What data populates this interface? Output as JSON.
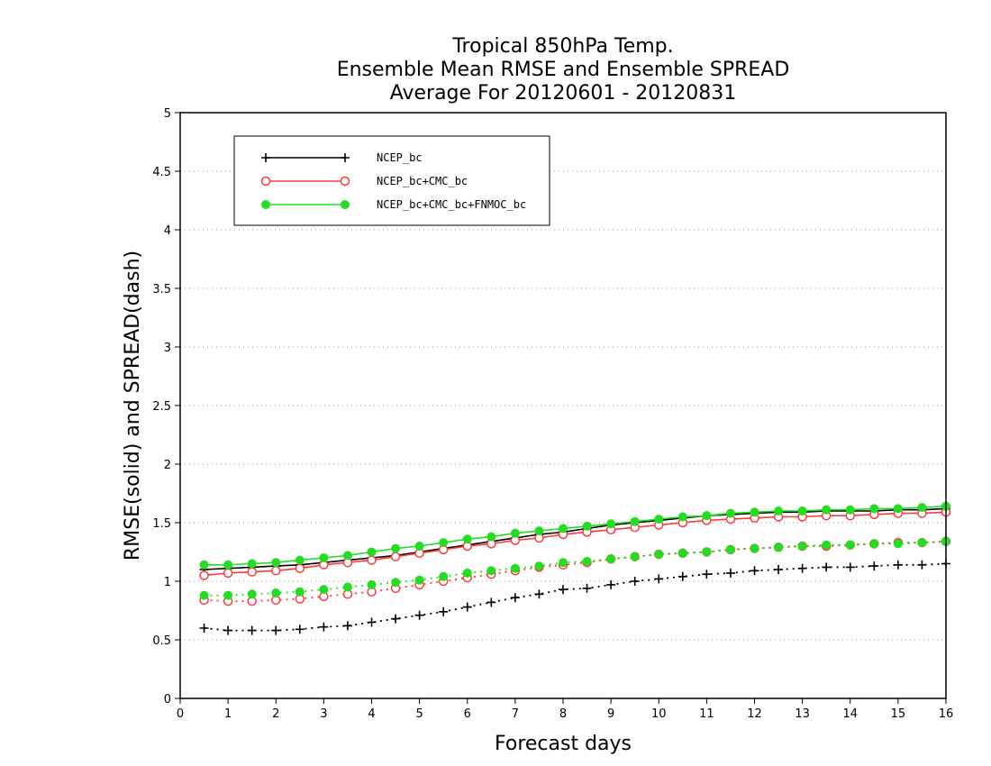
{
  "chart_data": {
    "type": "line",
    "title": [
      "Tropical 850hPa Temp.",
      "Ensemble Mean RMSE and Ensemble SPREAD",
      "Average For 20120601 - 20120831"
    ],
    "xlabel": "Forecast days",
    "ylabel": "RMSE(solid) and SPREAD(dash)",
    "xlim": [
      0,
      16
    ],
    "ylim": [
      0,
      5
    ],
    "xticks": [
      "0",
      "1",
      "2",
      "3",
      "4",
      "5",
      "6",
      "7",
      "8",
      "9",
      "10",
      "11",
      "12",
      "13",
      "14",
      "15",
      "16"
    ],
    "yticks": [
      "0",
      "0.5",
      "1",
      "1.5",
      "2",
      "2.5",
      "3",
      "3.5",
      "4",
      "4.5",
      "5"
    ],
    "grid": "horizontal-dotted",
    "legend_position": "top-left",
    "x": [
      0.5,
      1,
      1.5,
      2,
      2.5,
      3,
      3.5,
      4,
      4.5,
      5,
      5.5,
      6,
      6.5,
      7,
      7.5,
      8,
      8.5,
      9,
      9.5,
      10,
      10.5,
      11,
      11.5,
      12,
      12.5,
      13,
      13.5,
      14,
      14.5,
      15,
      15.5,
      16
    ],
    "series": [
      {
        "name": "NCEP_bc",
        "color": "#000000",
        "marker": "plus",
        "rmse": [
          1.1,
          1.11,
          1.12,
          1.13,
          1.14,
          1.16,
          1.18,
          1.2,
          1.22,
          1.25,
          1.28,
          1.31,
          1.34,
          1.37,
          1.4,
          1.42,
          1.45,
          1.48,
          1.5,
          1.52,
          1.54,
          1.56,
          1.57,
          1.58,
          1.59,
          1.59,
          1.6,
          1.6,
          1.6,
          1.61,
          1.61,
          1.62
        ],
        "spread": [
          0.6,
          0.58,
          0.58,
          0.58,
          0.59,
          0.61,
          0.62,
          0.65,
          0.68,
          0.71,
          0.74,
          0.78,
          0.82,
          0.86,
          0.89,
          0.93,
          0.94,
          0.97,
          1.0,
          1.02,
          1.04,
          1.06,
          1.07,
          1.09,
          1.1,
          1.11,
          1.12,
          1.12,
          1.13,
          1.14,
          1.14,
          1.15
        ]
      },
      {
        "name": "NCEP_bc+CMC_bc",
        "color": "#ff3a3a",
        "marker": "open-circle",
        "rmse": [
          1.05,
          1.07,
          1.08,
          1.09,
          1.11,
          1.14,
          1.16,
          1.18,
          1.21,
          1.24,
          1.27,
          1.3,
          1.32,
          1.35,
          1.37,
          1.4,
          1.42,
          1.44,
          1.46,
          1.48,
          1.5,
          1.52,
          1.53,
          1.54,
          1.55,
          1.55,
          1.56,
          1.56,
          1.57,
          1.58,
          1.58,
          1.59
        ],
        "spread": [
          0.84,
          0.83,
          0.83,
          0.84,
          0.85,
          0.87,
          0.89,
          0.91,
          0.94,
          0.97,
          1.0,
          1.03,
          1.06,
          1.09,
          1.12,
          1.14,
          1.16,
          1.19,
          1.21,
          1.23,
          1.24,
          1.25,
          1.27,
          1.28,
          1.29,
          1.3,
          1.3,
          1.31,
          1.32,
          1.33,
          1.33,
          1.34
        ]
      },
      {
        "name": "NCEP_bc+CMC_bc+FNMOC_bc",
        "color": "#22dd22",
        "marker": "filled-circle",
        "rmse": [
          1.14,
          1.14,
          1.15,
          1.16,
          1.18,
          1.2,
          1.22,
          1.25,
          1.28,
          1.3,
          1.33,
          1.36,
          1.38,
          1.41,
          1.43,
          1.45,
          1.47,
          1.49,
          1.51,
          1.53,
          1.55,
          1.56,
          1.58,
          1.59,
          1.6,
          1.6,
          1.61,
          1.61,
          1.62,
          1.62,
          1.63,
          1.64
        ],
        "spread": [
          0.88,
          0.88,
          0.89,
          0.9,
          0.91,
          0.93,
          0.95,
          0.97,
          0.99,
          1.01,
          1.04,
          1.07,
          1.09,
          1.11,
          1.13,
          1.16,
          1.17,
          1.19,
          1.21,
          1.23,
          1.24,
          1.25,
          1.27,
          1.28,
          1.29,
          1.3,
          1.31,
          1.31,
          1.32,
          1.32,
          1.33,
          1.34
        ]
      }
    ]
  }
}
